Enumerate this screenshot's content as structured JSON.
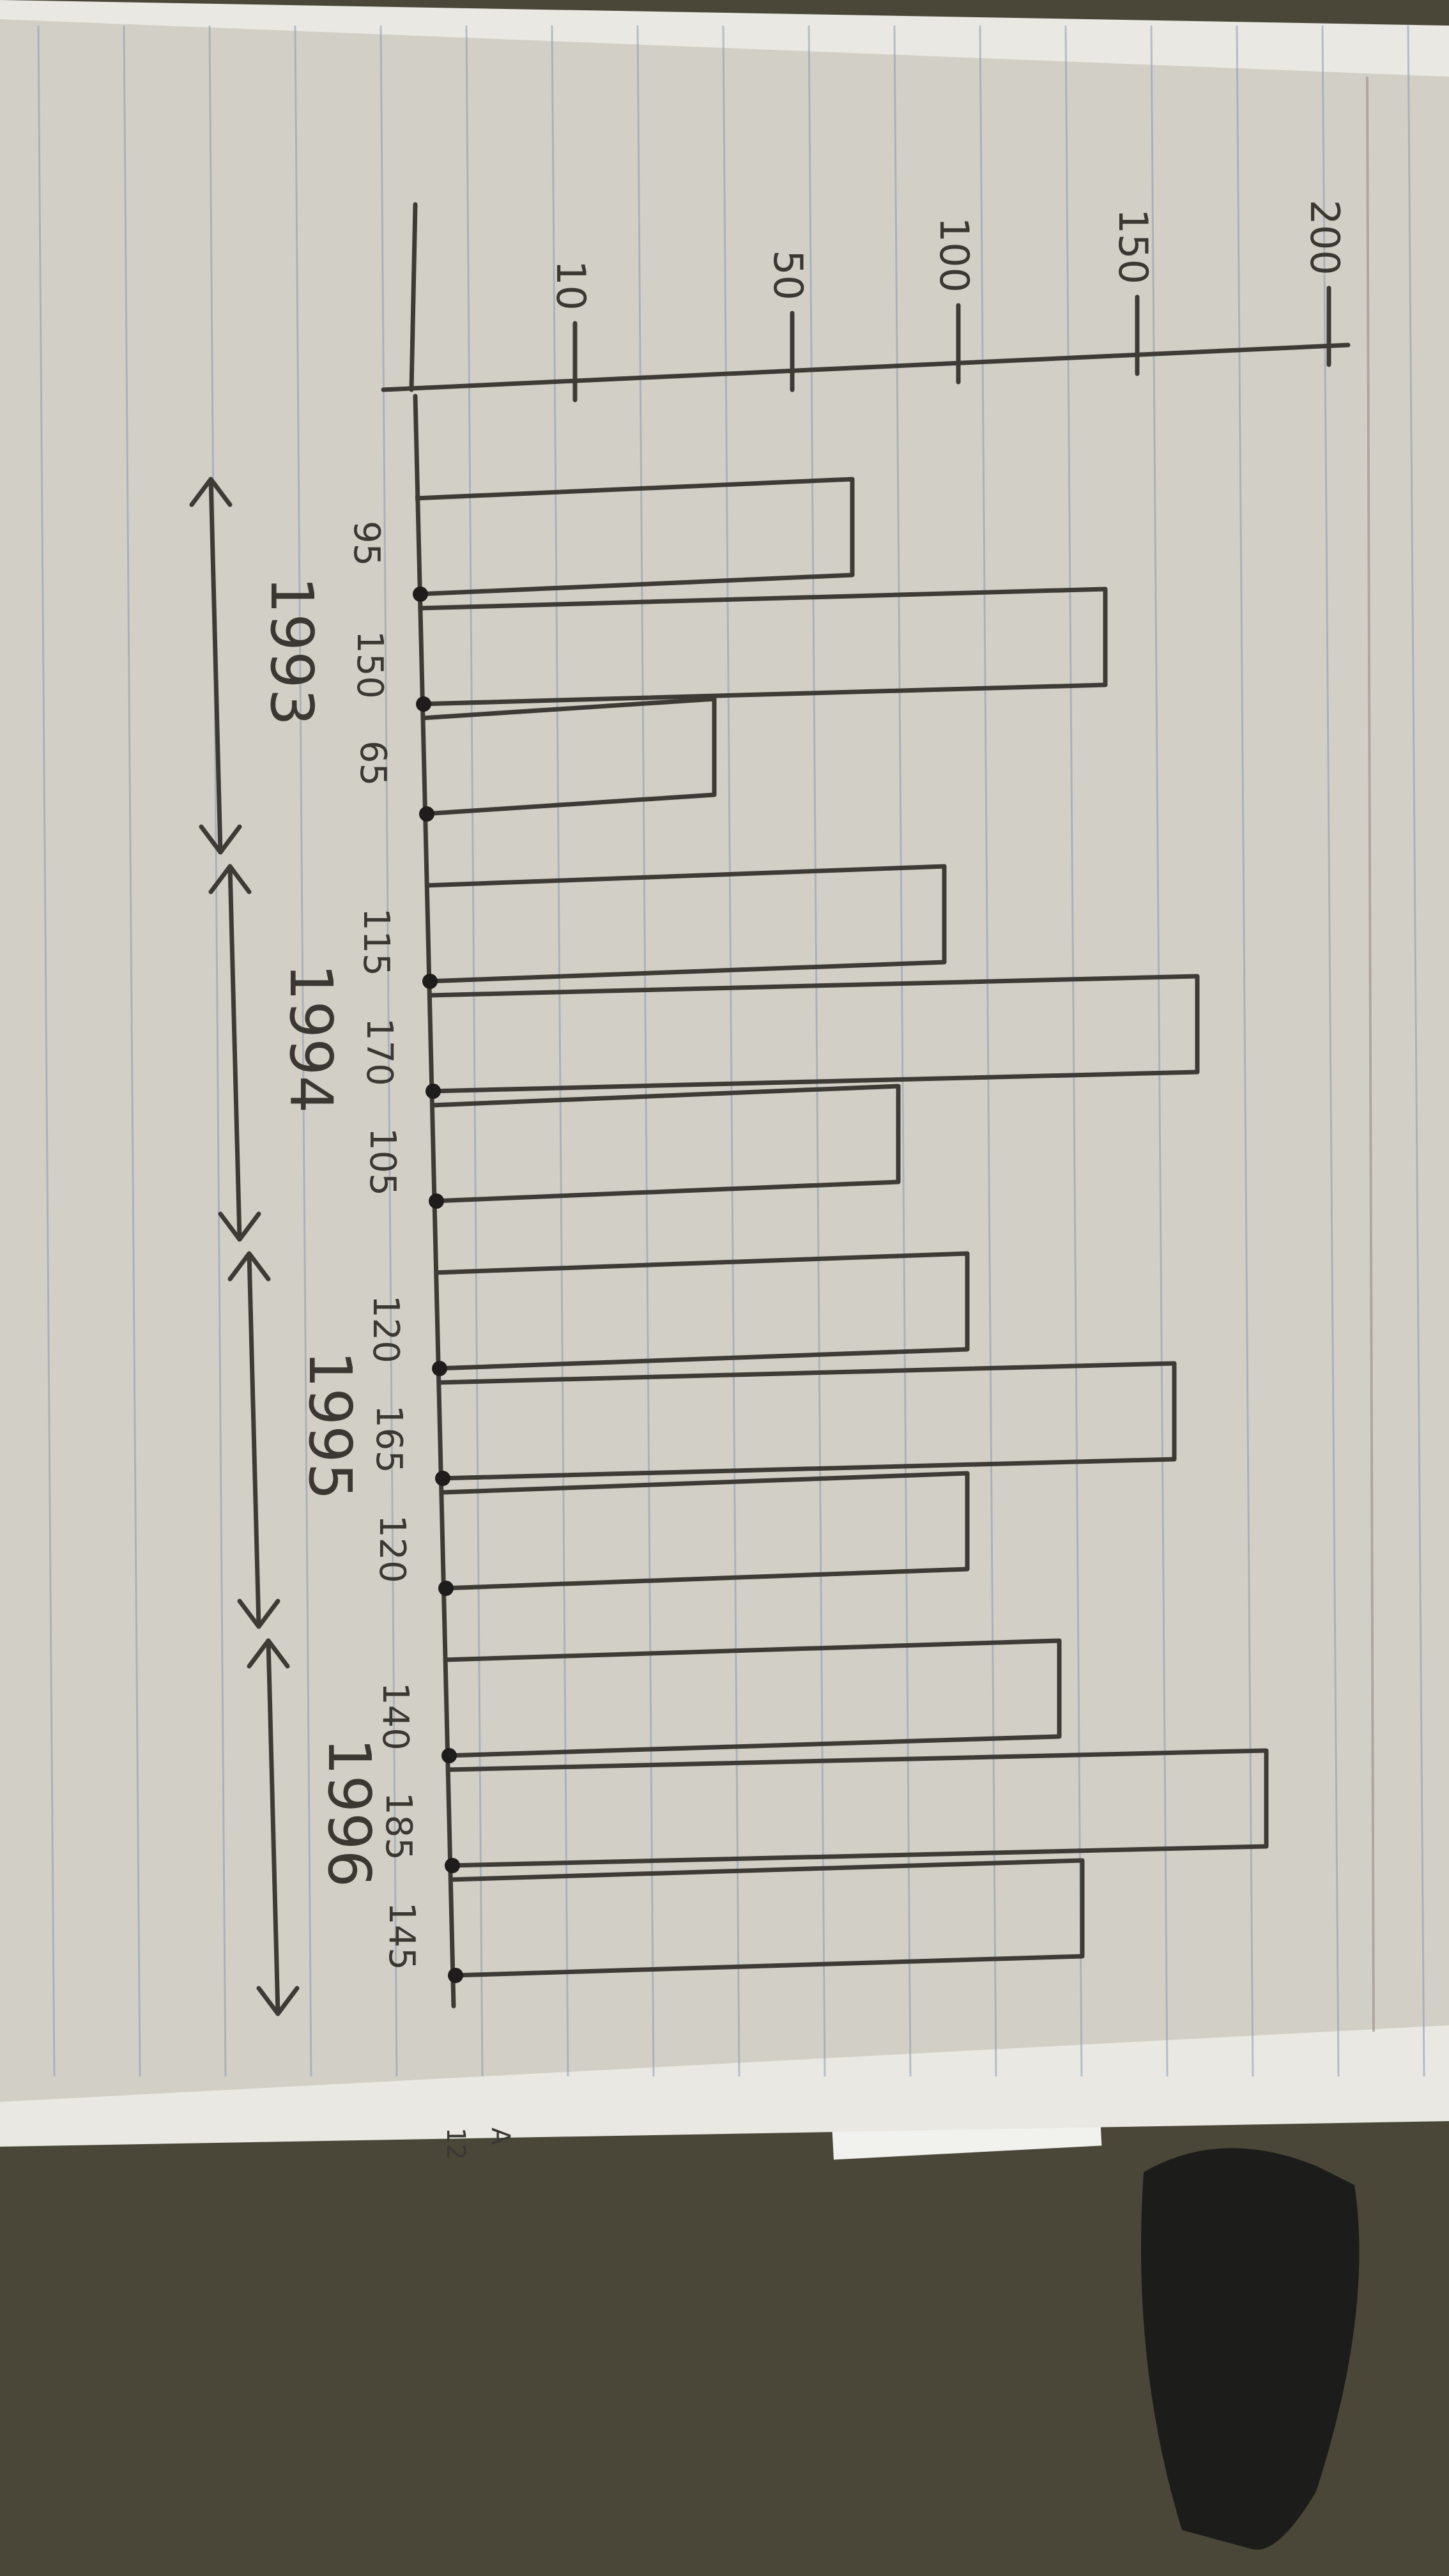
{
  "chart_data": {
    "type": "bar",
    "title": "",
    "xlabel": "",
    "ylabel": "",
    "ylim": [
      0,
      200
    ],
    "y_ticks": [
      {
        "value": 10,
        "label": "10"
      },
      {
        "value": 50,
        "label": "50"
      },
      {
        "value": 100,
        "label": "100"
      },
      {
        "value": 150,
        "label": "150"
      },
      {
        "value": 200,
        "label": "200"
      }
    ],
    "categories": [
      "95",
      "150",
      "65",
      "115",
      "170",
      "105",
      "120",
      "165",
      "120",
      "140",
      "185",
      "145"
    ],
    "values": [
      95,
      150,
      65,
      115,
      170,
      105,
      120,
      165,
      120,
      140,
      185,
      145
    ],
    "groups": [
      {
        "label": "1993",
        "bars": [
          0,
          1,
          2
        ]
      },
      {
        "label": "1994",
        "bars": [
          3,
          4,
          5
        ]
      },
      {
        "label": "1995",
        "bars": [
          6,
          7,
          8
        ]
      },
      {
        "label": "1996",
        "bars": [
          9,
          10,
          11
        ]
      }
    ],
    "grid": false,
    "orientation": "vertical bars drawn sideways on a rotated notebook page"
  },
  "margin_note": {
    "line1": "A",
    "line2": "12"
  },
  "colors": {
    "ink": "#3e3a36",
    "paper": "#d2d0c6",
    "background": "#4a4638"
  }
}
